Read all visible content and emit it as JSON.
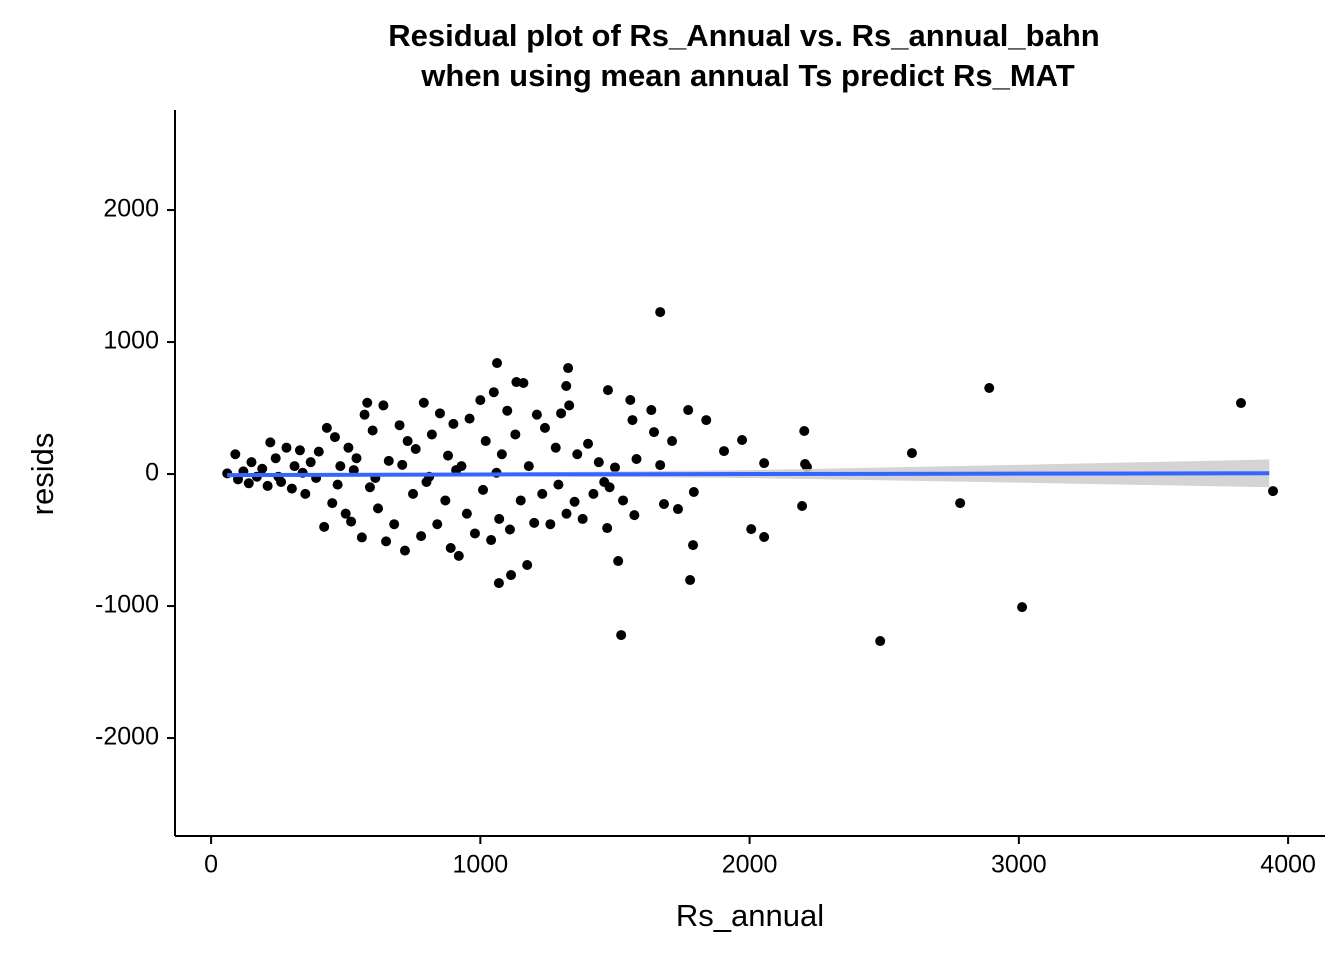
{
  "chart_data": {
    "type": "scatter",
    "title": [
      "Residual plot of Rs_Annual vs. Rs_annual_bahn",
      "when using mean annual Ts predict Rs_MAT"
    ],
    "x_label": "Rs_annual",
    "y_label": "resids",
    "xlim": [
      -134,
      4137
    ],
    "ylim": [
      -2742,
      2758
    ],
    "xticks": [
      0,
      1000,
      2000,
      3000,
      4000
    ],
    "yticks": [
      -2000,
      -1000,
      0,
      1000,
      2000
    ],
    "grid": false,
    "color": "#000000",
    "x": [
      1668,
      1062,
      1326,
      2890,
      3825,
      1474,
      1134,
      2603,
      2782,
      3944,
      3012,
      2485,
      1523,
      1512,
      1779,
      1069,
      1114,
      1174,
      1790,
      2006,
      2054,
      2195,
      2203,
      2206,
      2213,
      2054,
      1972,
      1839,
      1772,
      1712,
      1645,
      1565,
      1557,
      1635,
      1682,
      1734,
      1793,
      1572,
      1471,
      1905,
      1668,
      1580,
      1319,
      60,
      90,
      100,
      120,
      140,
      150,
      170,
      190,
      210,
      220,
      240,
      260,
      280,
      300,
      310,
      330,
      350,
      370,
      390,
      400,
      420,
      430,
      450,
      460,
      480,
      500,
      510,
      520,
      540,
      560,
      570,
      580,
      590,
      600,
      620,
      640,
      650,
      660,
      680,
      700,
      720,
      730,
      750,
      760,
      780,
      790,
      800,
      820,
      840,
      850,
      870,
      880,
      890,
      900,
      920,
      930,
      950,
      960,
      980,
      1000,
      1010,
      1020,
      1040,
      1050,
      1070,
      1080,
      1100,
      1110,
      1130,
      1150,
      1160,
      1180,
      1200,
      1210,
      1230,
      1240,
      1260,
      1280,
      1290,
      1300,
      1320,
      1330,
      1350,
      1360,
      1380,
      1400,
      1420,
      1440,
      1460,
      1480,
      1500,
      1530,
      530,
      470,
      610,
      710,
      810,
      910,
      1060,
      340,
      250
    ],
    "values": [
      1227,
      841,
      803,
      652,
      538,
      636,
      697,
      159,
      -220,
      -129,
      -1008,
      -1265,
      -1220,
      -659,
      -803,
      -826,
      -765,
      -689,
      -538,
      -417,
      -477,
      -242,
      326,
      76,
      53,
      83,
      258,
      409,
      485,
      250,
      318,
      409,
      561,
      485,
      -227,
      -265,
      -136,
      -311,
      -409,
      174,
      68,
      114,
      667,
      5,
      150,
      -40,
      20,
      -70,
      90,
      -20,
      40,
      -90,
      240,
      120,
      -60,
      200,
      -110,
      60,
      180,
      -150,
      90,
      -30,
      170,
      -400,
      350,
      -220,
      280,
      60,
      -300,
      200,
      -360,
      120,
      -480,
      450,
      540,
      -100,
      330,
      -260,
      520,
      -510,
      100,
      -380,
      370,
      -580,
      250,
      -150,
      190,
      -470,
      540,
      -60,
      300,
      -380,
      460,
      -200,
      140,
      -560,
      380,
      -620,
      60,
      -300,
      420,
      -450,
      560,
      -120,
      250,
      -500,
      620,
      -340,
      150,
      480,
      -420,
      300,
      -200,
      690,
      60,
      -370,
      450,
      -150,
      350,
      -380,
      200,
      -80,
      460,
      -300,
      520,
      -210,
      150,
      -340,
      230,
      -150,
      90,
      -60,
      -100,
      50,
      -200,
      30,
      -80,
      -30,
      70,
      -20,
      30,
      10,
      10,
      -20
    ],
    "fit": {
      "x": [
        60,
        1000,
        2000,
        3000,
        3930
      ],
      "values": [
        -8,
        -3,
        0,
        3,
        6
      ],
      "lower": [
        -20,
        -15,
        -30,
        -65,
        -100
      ],
      "upper": [
        4,
        10,
        30,
        70,
        110
      ],
      "color": "#3366ff",
      "band_color": "#cccccc"
    }
  }
}
